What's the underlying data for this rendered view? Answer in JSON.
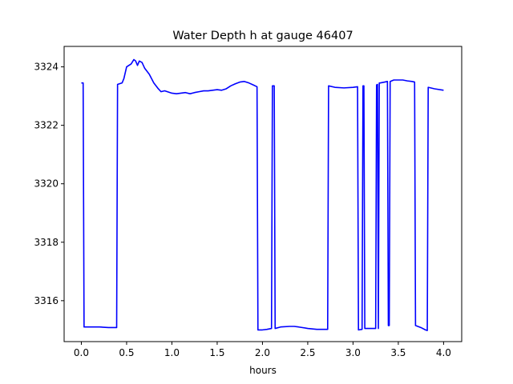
{
  "chart_data": {
    "type": "line",
    "title": "Water Depth h at gauge 46407",
    "xlabel": "hours",
    "ylabel": "",
    "xlim": [
      -0.19,
      4.2
    ],
    "ylim": [
      3314.6,
      3324.7
    ],
    "xticks": [
      0.0,
      0.5,
      1.0,
      1.5,
      2.0,
      2.5,
      3.0,
      3.5,
      4.0
    ],
    "xtick_labels": [
      "0.0",
      "0.5",
      "1.0",
      "1.5",
      "2.0",
      "2.5",
      "3.0",
      "3.5",
      "4.0"
    ],
    "yticks": [
      3316,
      3318,
      3320,
      3322,
      3324
    ],
    "ytick_labels": [
      "3316",
      "3318",
      "3320",
      "3322",
      "3324"
    ],
    "grid": false,
    "series": [
      {
        "color": "#0000ff",
        "x": [
          0.0,
          0.02,
          0.03,
          0.1,
          0.2,
          0.3,
          0.39,
          0.4,
          0.45,
          0.47,
          0.5,
          0.55,
          0.58,
          0.6,
          0.62,
          0.64,
          0.67,
          0.7,
          0.75,
          0.8,
          0.85,
          0.88,
          0.92,
          0.95,
          1.0,
          1.05,
          1.1,
          1.15,
          1.2,
          1.25,
          1.3,
          1.35,
          1.4,
          1.45,
          1.5,
          1.55,
          1.6,
          1.65,
          1.7,
          1.75,
          1.8,
          1.85,
          1.9,
          1.94,
          1.95,
          2.0,
          2.05,
          2.1,
          2.11,
          2.13,
          2.14,
          2.2,
          2.3,
          2.35,
          2.4,
          2.5,
          2.6,
          2.7,
          2.72,
          2.73,
          2.8,
          2.9,
          3.0,
          3.05,
          3.06,
          3.1,
          3.11,
          3.12,
          3.13,
          3.2,
          3.25,
          3.26,
          3.27,
          3.28,
          3.29,
          3.3,
          3.35,
          3.38,
          3.39,
          3.4,
          3.41,
          3.45,
          3.5,
          3.55,
          3.6,
          3.65,
          3.68,
          3.69,
          3.75,
          3.8,
          3.82,
          3.83,
          3.9,
          4.0
        ],
        "y": [
          3323.45,
          3323.45,
          3315.1,
          3315.1,
          3315.1,
          3315.08,
          3315.08,
          3323.4,
          3323.45,
          3323.6,
          3324.0,
          3324.1,
          3324.25,
          3324.2,
          3324.05,
          3324.2,
          3324.15,
          3323.95,
          3323.75,
          3323.45,
          3323.25,
          3323.15,
          3323.18,
          3323.15,
          3323.1,
          3323.08,
          3323.1,
          3323.12,
          3323.08,
          3323.12,
          3323.15,
          3323.18,
          3323.18,
          3323.2,
          3323.22,
          3323.2,
          3323.25,
          3323.35,
          3323.42,
          3323.48,
          3323.5,
          3323.45,
          3323.38,
          3323.32,
          3315.0,
          3315.0,
          3315.02,
          3315.05,
          3323.35,
          3323.35,
          3315.05,
          3315.1,
          3315.12,
          3315.12,
          3315.1,
          3315.05,
          3315.02,
          3315.02,
          3315.02,
          3323.35,
          3323.3,
          3323.28,
          3323.3,
          3323.32,
          3315.0,
          3315.02,
          3323.35,
          3323.35,
          3315.05,
          3315.05,
          3315.05,
          3323.38,
          3323.4,
          3315.05,
          3323.45,
          3323.45,
          3323.48,
          3323.5,
          3315.15,
          3315.15,
          3323.5,
          3323.55,
          3323.55,
          3323.55,
          3323.52,
          3323.5,
          3323.48,
          3315.15,
          3315.08,
          3315.0,
          3314.98,
          3323.3,
          3323.25,
          3323.2
        ]
      }
    ]
  }
}
